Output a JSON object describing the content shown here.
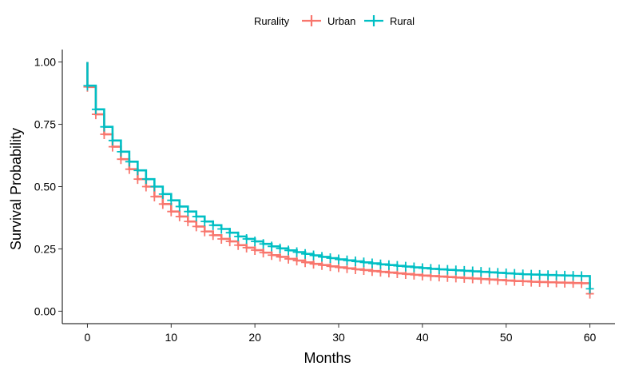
{
  "chart_data": {
    "type": "line",
    "title": "",
    "xlabel": "Months",
    "ylabel": "Survival Probability",
    "xlim": [
      -3,
      63
    ],
    "ylim": [
      -0.05,
      1.05
    ],
    "xticks": [
      0,
      10,
      20,
      30,
      40,
      50,
      60
    ],
    "yticks": [
      0.0,
      0.25,
      0.5,
      0.75,
      1.0
    ],
    "xtick_labels": [
      "0",
      "10",
      "20",
      "30",
      "40",
      "50",
      "60"
    ],
    "ytick_labels": [
      "0.00",
      "0.25",
      "0.50",
      "0.75",
      "1.00"
    ],
    "grid": false,
    "legend": {
      "title": "Rurality",
      "position": "top"
    },
    "series": [
      {
        "name": "Urban",
        "color": "#F8766D",
        "x": [
          0,
          1,
          2,
          3,
          4,
          5,
          6,
          7,
          8,
          9,
          10,
          11,
          12,
          13,
          14,
          15,
          16,
          17,
          18,
          19,
          20,
          21,
          22,
          23,
          24,
          25,
          26,
          27,
          28,
          29,
          30,
          31,
          32,
          33,
          34,
          35,
          36,
          37,
          38,
          39,
          40,
          41,
          42,
          43,
          44,
          45,
          46,
          47,
          48,
          49,
          50,
          51,
          52,
          53,
          54,
          55,
          56,
          57,
          58,
          59,
          60
        ],
        "y": [
          0.9,
          0.79,
          0.71,
          0.66,
          0.61,
          0.57,
          0.53,
          0.5,
          0.46,
          0.43,
          0.4,
          0.38,
          0.36,
          0.34,
          0.32,
          0.305,
          0.29,
          0.28,
          0.265,
          0.255,
          0.245,
          0.235,
          0.225,
          0.218,
          0.21,
          0.203,
          0.196,
          0.19,
          0.185,
          0.18,
          0.176,
          0.172,
          0.168,
          0.165,
          0.161,
          0.158,
          0.155,
          0.152,
          0.149,
          0.146,
          0.143,
          0.141,
          0.139,
          0.137,
          0.135,
          0.133,
          0.131,
          0.129,
          0.127,
          0.125,
          0.123,
          0.121,
          0.12,
          0.118,
          0.117,
          0.116,
          0.115,
          0.114,
          0.113,
          0.112,
          0.07
        ]
      },
      {
        "name": "Rural",
        "color": "#00BFC4",
        "x": [
          0,
          1,
          2,
          3,
          4,
          5,
          6,
          7,
          8,
          9,
          10,
          11,
          12,
          13,
          14,
          15,
          16,
          17,
          18,
          19,
          20,
          21,
          22,
          23,
          24,
          25,
          26,
          27,
          28,
          29,
          30,
          31,
          32,
          33,
          34,
          35,
          36,
          37,
          38,
          39,
          40,
          41,
          42,
          43,
          44,
          45,
          46,
          47,
          48,
          49,
          50,
          51,
          52,
          53,
          54,
          55,
          56,
          57,
          58,
          59,
          60
        ],
        "y": [
          0.905,
          0.81,
          0.74,
          0.685,
          0.64,
          0.6,
          0.565,
          0.53,
          0.5,
          0.47,
          0.445,
          0.42,
          0.4,
          0.38,
          0.36,
          0.345,
          0.33,
          0.315,
          0.3,
          0.29,
          0.28,
          0.27,
          0.26,
          0.252,
          0.244,
          0.237,
          0.23,
          0.224,
          0.218,
          0.213,
          0.208,
          0.204,
          0.2,
          0.196,
          0.192,
          0.188,
          0.185,
          0.182,
          0.179,
          0.176,
          0.173,
          0.17,
          0.168,
          0.166,
          0.164,
          0.162,
          0.16,
          0.158,
          0.156,
          0.154,
          0.152,
          0.15,
          0.148,
          0.147,
          0.146,
          0.145,
          0.144,
          0.143,
          0.142,
          0.141,
          0.09
        ]
      }
    ]
  }
}
